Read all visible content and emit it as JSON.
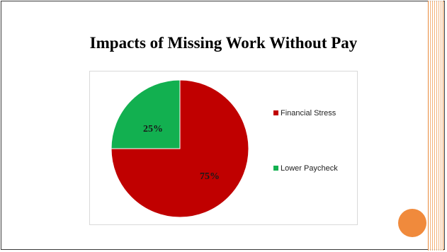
{
  "title": "Impacts of Missing Work Without Pay",
  "chart_data": {
    "type": "pie",
    "title": "",
    "categories": [
      "Financial Stress",
      "Lower Paycheck"
    ],
    "values": [
      75,
      25
    ],
    "value_labels": [
      "75%",
      "25%"
    ],
    "colors": [
      "#c00000",
      "#12b050"
    ],
    "legend": "right"
  },
  "colors": {
    "accent_band": "#f2a96a",
    "dot": "#f08a3c"
  }
}
